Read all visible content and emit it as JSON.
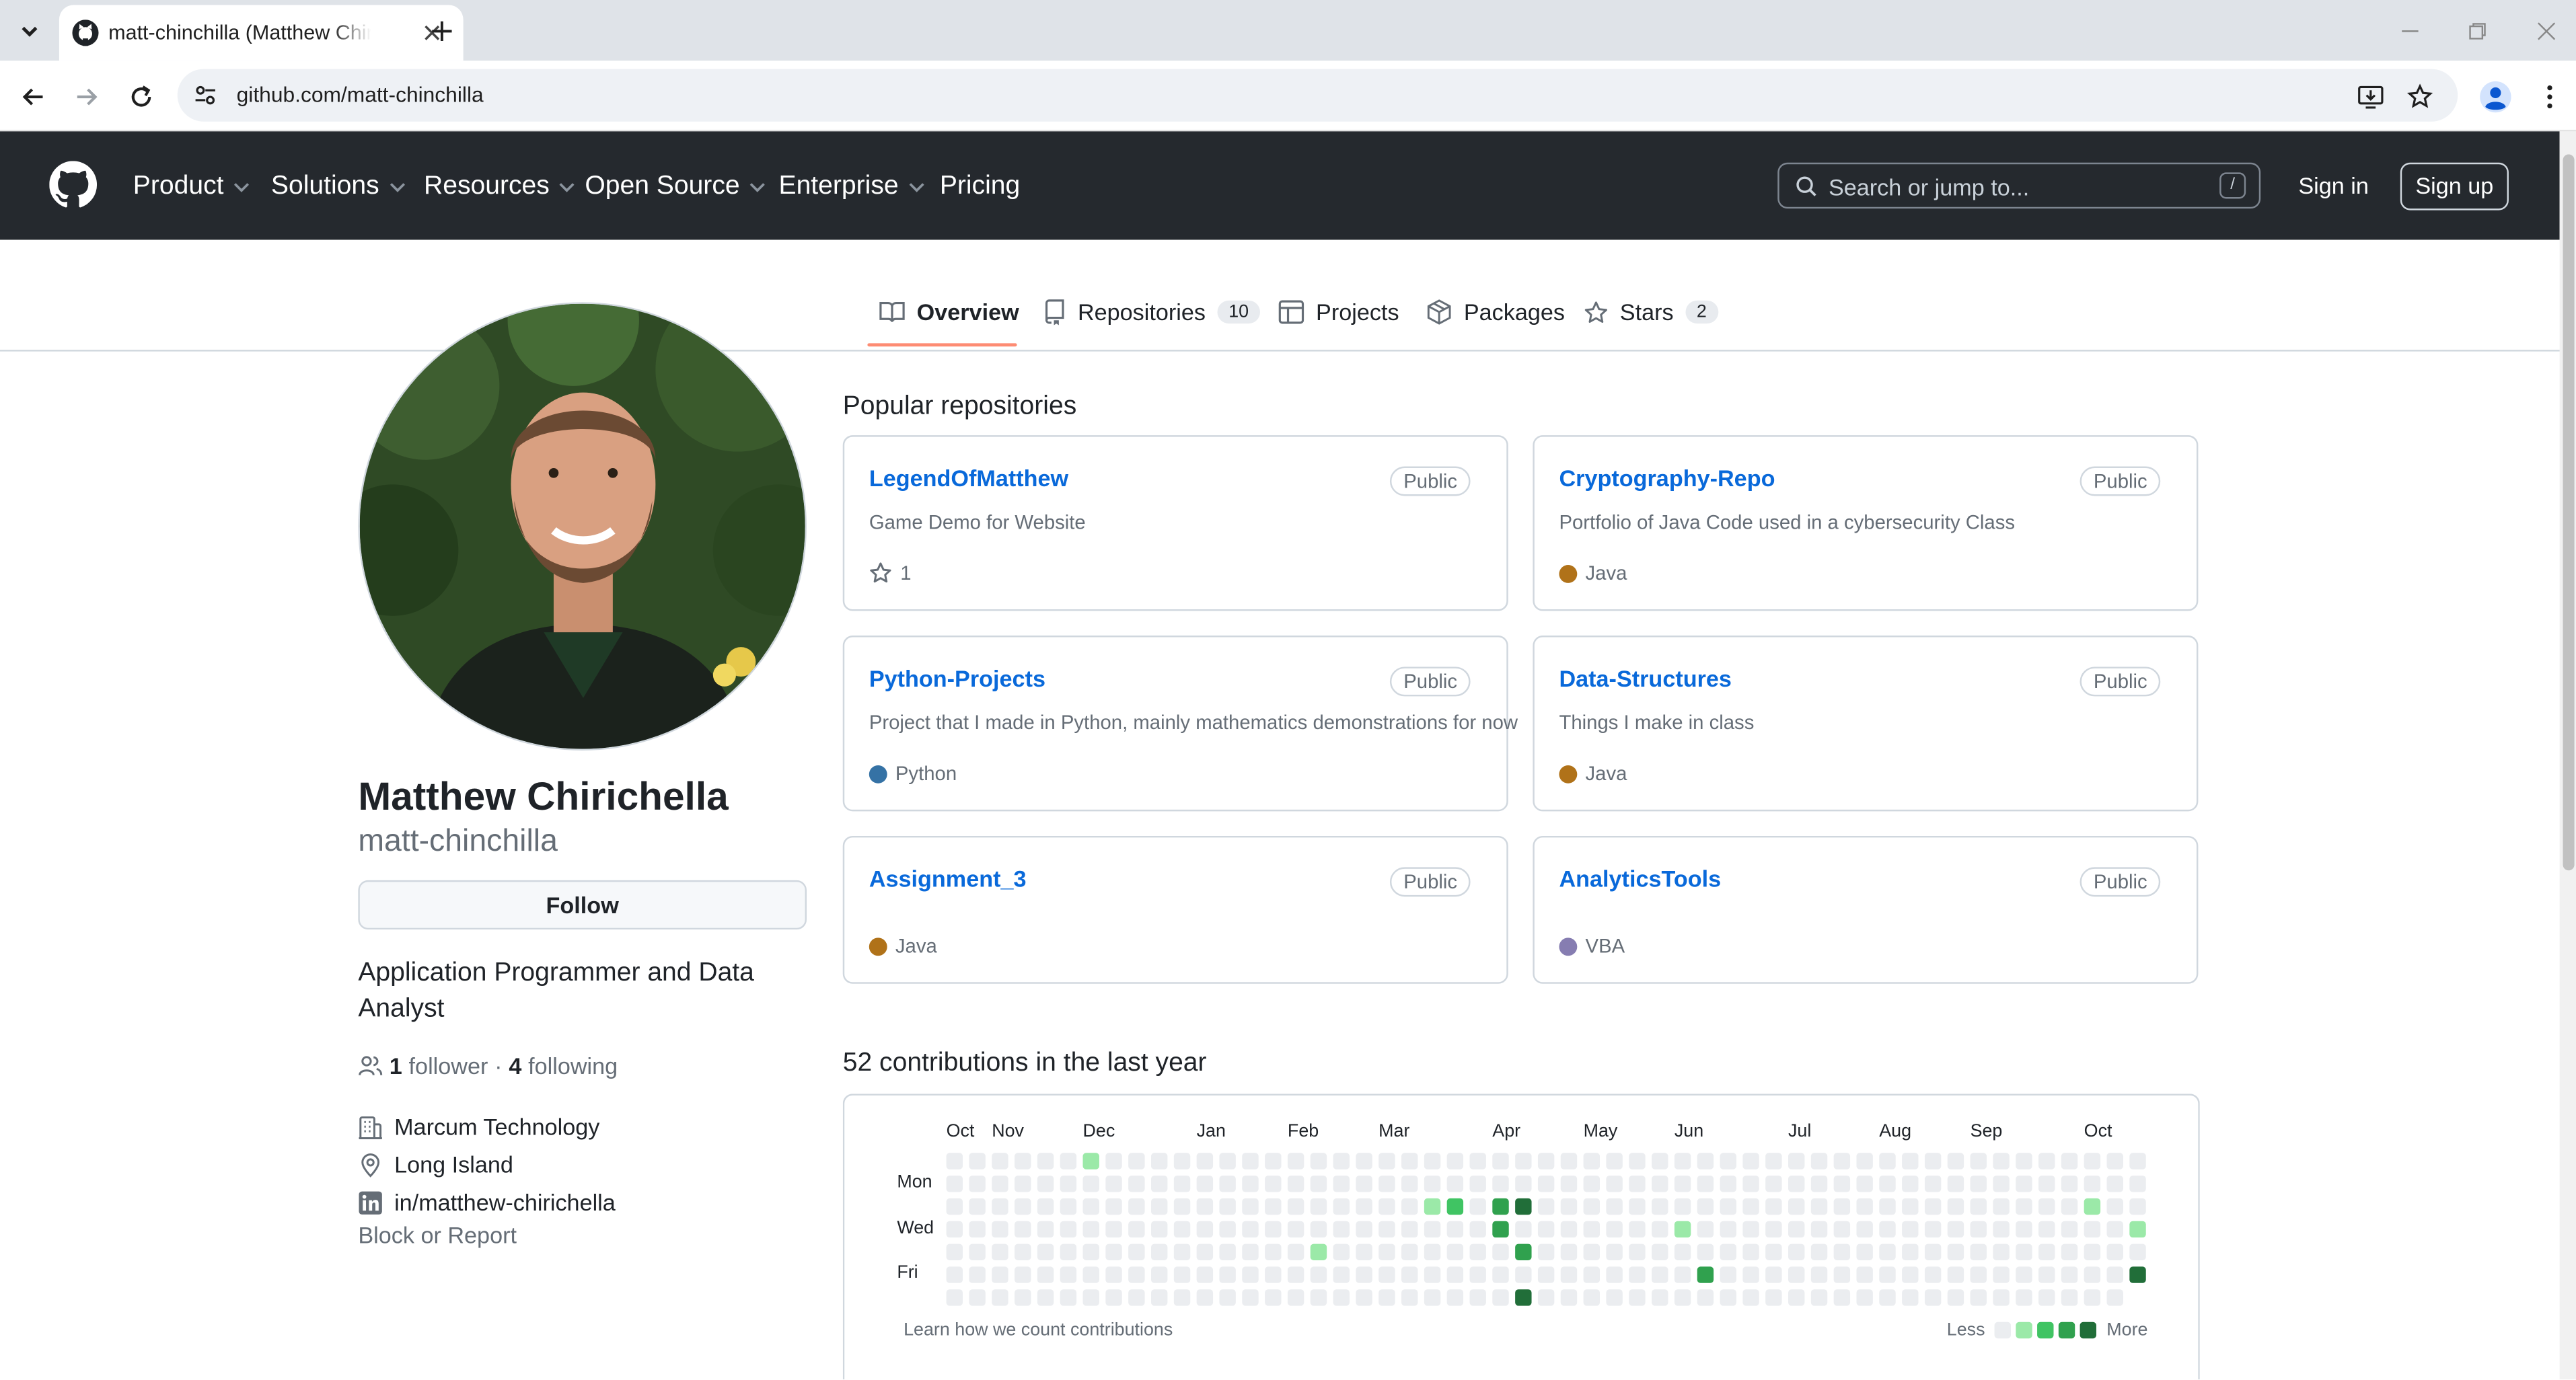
{
  "browser": {
    "tab_title": "matt-chinchilla (Matthew Chirichella)",
    "url": "github.com/matt-chinchilla",
    "icons": [
      "tab-search-icon",
      "github-favicon-icon",
      "close-icon",
      "plus-icon",
      "back-icon",
      "forward-icon",
      "reload-icon",
      "site-info-icon",
      "install-app-icon",
      "bookmark-star-icon",
      "profile-icon",
      "menu-icon"
    ]
  },
  "header": {
    "nav": [
      {
        "label": "Product",
        "dropdown": true
      },
      {
        "label": "Solutions",
        "dropdown": true
      },
      {
        "label": "Resources",
        "dropdown": true
      },
      {
        "label": "Open Source",
        "dropdown": true
      },
      {
        "label": "Enterprise",
        "dropdown": true
      },
      {
        "label": "Pricing",
        "dropdown": false
      }
    ],
    "search_placeholder": "Search or jump to...",
    "search_shortcut": "/",
    "sign_in": "Sign in",
    "sign_up": "Sign up"
  },
  "tabs": [
    {
      "label": "Overview",
      "count": "",
      "selected": true
    },
    {
      "label": "Repositories",
      "count": "10",
      "selected": false
    },
    {
      "label": "Projects",
      "count": "",
      "selected": false
    },
    {
      "label": "Packages",
      "count": "",
      "selected": false
    },
    {
      "label": "Stars",
      "count": "2",
      "selected": false
    }
  ],
  "profile": {
    "name": "Matthew Chirichella",
    "login": "matt-chinchilla",
    "follow_label": "Follow",
    "bio": "Application Programmer and Data Analyst",
    "followers": "1",
    "followers_label": "follower",
    "separator": "·",
    "following": "4",
    "following_label": "following",
    "company": "Marcum Technology",
    "location": "Long Island",
    "linkedin": "in/matthew-chirichella",
    "block_label": "Block or Report"
  },
  "popular": {
    "heading": "Popular repositories",
    "repos": [
      {
        "name": "LegendOfMatthew",
        "visibility": "Public",
        "description": "Game Demo for Website",
        "stars": "1",
        "language": "",
        "language_color": ""
      },
      {
        "name": "Cryptography-Repo",
        "visibility": "Public",
        "description": "Portfolio of Java Code used in a cybersecurity Class",
        "stars": "",
        "language": "Java",
        "language_color": "#b07219"
      },
      {
        "name": "Python-Projects",
        "visibility": "Public",
        "description": "Project that I made in Python, mainly mathematics demonstrations for now",
        "stars": "",
        "language": "Python",
        "language_color": "#3572A5"
      },
      {
        "name": "Data-Structures",
        "visibility": "Public",
        "description": "Things I make in class",
        "stars": "",
        "language": "Java",
        "language_color": "#b07219"
      },
      {
        "name": "Assignment_3",
        "visibility": "Public",
        "description": "",
        "stars": "",
        "language": "Java",
        "language_color": "#b07219"
      },
      {
        "name": "AnalyticsTools",
        "visibility": "Public",
        "description": "",
        "stars": "",
        "language": "VBA",
        "language_color": "#867db1"
      }
    ]
  },
  "contributions": {
    "heading": "52 contributions in the last year",
    "months": [
      {
        "label": "Oct",
        "week": 0
      },
      {
        "label": "Nov",
        "week": 2
      },
      {
        "label": "Dec",
        "week": 6
      },
      {
        "label": "Jan",
        "week": 11
      },
      {
        "label": "Feb",
        "week": 15
      },
      {
        "label": "Mar",
        "week": 19
      },
      {
        "label": "Apr",
        "week": 24
      },
      {
        "label": "May",
        "week": 28
      },
      {
        "label": "Jun",
        "week": 32
      },
      {
        "label": "Jul",
        "week": 37
      },
      {
        "label": "Aug",
        "week": 41
      },
      {
        "label": "Sep",
        "week": 45
      },
      {
        "label": "Oct",
        "week": 50
      }
    ],
    "day_labels": [
      {
        "label": "Mon",
        "row": 1
      },
      {
        "label": "Wed",
        "row": 3
      },
      {
        "label": "Fri",
        "row": 5
      }
    ],
    "weeks": 53,
    "last_week_days": 6,
    "level_colors": [
      "#ebedf0",
      "#9be9a8",
      "#40c463",
      "#30a14e",
      "#216e39"
    ],
    "active_cells": [
      {
        "week": 6,
        "day": 0,
        "level": 1
      },
      {
        "week": 16,
        "day": 4,
        "level": 1
      },
      {
        "week": 21,
        "day": 2,
        "level": 1
      },
      {
        "week": 22,
        "day": 2,
        "level": 2
      },
      {
        "week": 24,
        "day": 2,
        "level": 3
      },
      {
        "week": 24,
        "day": 3,
        "level": 3
      },
      {
        "week": 25,
        "day": 2,
        "level": 4
      },
      {
        "week": 25,
        "day": 4,
        "level": 3
      },
      {
        "week": 25,
        "day": 6,
        "level": 4
      },
      {
        "week": 32,
        "day": 3,
        "level": 1
      },
      {
        "week": 33,
        "day": 5,
        "level": 3
      },
      {
        "week": 50,
        "day": 2,
        "level": 1
      },
      {
        "week": 52,
        "day": 3,
        "level": 1
      },
      {
        "week": 52,
        "day": 5,
        "level": 4
      }
    ],
    "learn_link": "Learn how we count contributions",
    "legend_less": "Less",
    "legend_more": "More"
  }
}
